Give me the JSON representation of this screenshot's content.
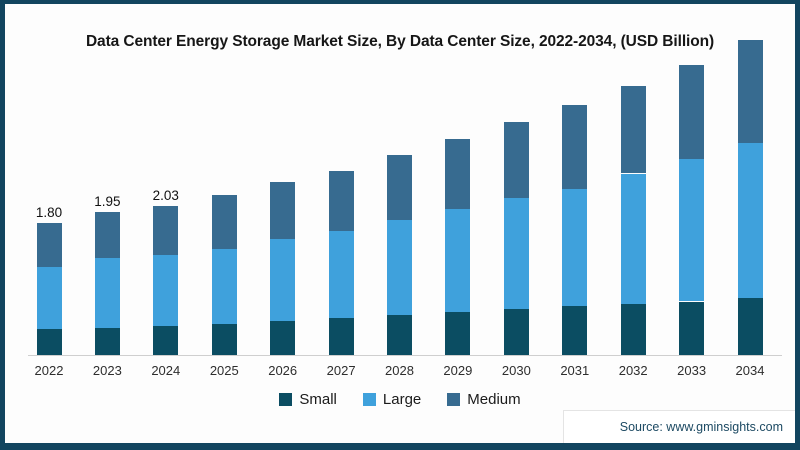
{
  "frame": {
    "border_color": "#12455f",
    "background": "#fdfdfd"
  },
  "title": "Data Center Energy Storage Market Size, By Data Center Size, 2022-2034, (USD Billion)",
  "chart_data": {
    "type": "bar",
    "stacked": true,
    "title": "Data Center Energy Storage Market Size, By Data Center Size, 2022-2034, (USD Billion)",
    "unit": "USD Billion",
    "xlabel": "",
    "ylabel": "",
    "grid": false,
    "legend_position": "bottom",
    "axis_line_color": "#cfcfcf",
    "categories": [
      "2022",
      "2023",
      "2024",
      "2025",
      "2026",
      "2027",
      "2028",
      "2029",
      "2030",
      "2031",
      "2032",
      "2033",
      "2034"
    ],
    "series": [
      {
        "name": "Small",
        "color": "#0b4d62",
        "values": [
          0.36,
          0.37,
          0.4,
          0.42,
          0.47,
          0.51,
          0.55,
          0.59,
          0.63,
          0.67,
          0.7,
          0.73,
          0.78
        ]
      },
      {
        "name": "Large",
        "color": "#3fa1dc",
        "values": [
          0.84,
          0.95,
          0.97,
          1.03,
          1.11,
          1.19,
          1.29,
          1.41,
          1.52,
          1.6,
          1.78,
          1.95,
          2.12
        ]
      },
      {
        "name": "Medium",
        "color": "#376b90",
        "values": [
          0.6,
          0.63,
          0.66,
          0.74,
          0.78,
          0.82,
          0.89,
          0.95,
          1.04,
          1.15,
          1.19,
          1.28,
          1.4
        ]
      }
    ],
    "totals": [
      1.8,
      1.95,
      2.03,
      2.19,
      2.36,
      2.52,
      2.73,
      2.95,
      3.19,
      3.42,
      3.67,
      3.96,
      4.3
    ],
    "total_labels": [
      "1.80",
      "1.95",
      "2.03",
      "",
      "",
      "",
      "",
      "",
      "",
      "",
      "",
      "",
      ""
    ]
  },
  "source": {
    "label": "Source: www.gminsights.com"
  }
}
